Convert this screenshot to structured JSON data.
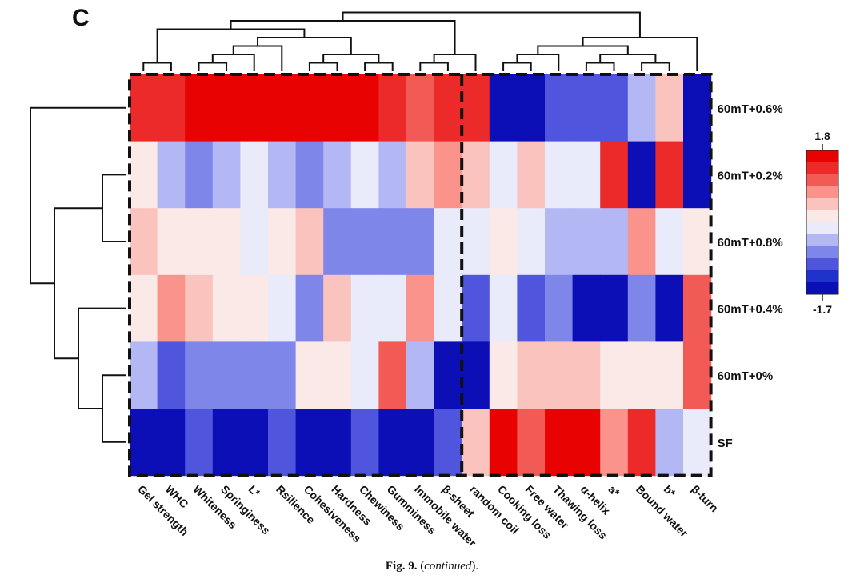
{
  "figure": {
    "panel_label": "C",
    "caption_fig": "Fig. 9.",
    "caption_open": " (",
    "caption_text": "continued",
    "caption_close": ")."
  },
  "chart_data": {
    "type": "heatmap",
    "columns": [
      "Gel strength",
      "WHC",
      "Whiteness",
      "Springiness",
      "L*",
      "Rsilience",
      "Cohesiveness",
      "Hardness",
      "Chewiness",
      "Gumminess",
      "Immobile water",
      "β-sheet",
      "random coil",
      "Cooking loss",
      "Free water",
      "Thawing loss",
      "α-helix",
      "a*",
      "Bound water",
      "b*",
      "β-turn"
    ],
    "rows": [
      "60mT+0.6%",
      "60mT+0.2%",
      "60mT+0.8%",
      "60mT+0.4%",
      "60mT+0%",
      "SF"
    ],
    "values": [
      [
        1.4,
        1.4,
        1.8,
        1.8,
        1.8,
        1.8,
        1.8,
        1.8,
        1.8,
        1.4,
        1.0,
        1.4,
        1.5,
        -1.7,
        -1.7,
        -1.1,
        -1.1,
        -1.1,
        -0.4,
        0.4,
        -1.5
      ],
      [
        0.1,
        -0.5,
        -0.8,
        -0.4,
        -0.1,
        -0.4,
        -0.8,
        -0.4,
        -0.1,
        -0.4,
        0.4,
        0.7,
        0.4,
        -0.1,
        0.4,
        -0.1,
        -0.1,
        1.5,
        -1.5,
        1.5,
        -1.5
      ],
      [
        0.4,
        0.1,
        0.1,
        0.1,
        -0.1,
        0.1,
        0.4,
        -0.8,
        -0.8,
        -0.8,
        -0.8,
        -0.1,
        -0.1,
        0.1,
        -0.1,
        -0.4,
        -0.4,
        -0.4,
        0.7,
        -0.1,
        0.1
      ],
      [
        0.1,
        0.7,
        0.4,
        0.1,
        0.1,
        -0.1,
        -0.8,
        0.4,
        -0.1,
        -0.1,
        0.7,
        -0.1,
        -1.1,
        -0.1,
        -1.1,
        -0.8,
        -1.5,
        -1.5,
        -0.8,
        -1.7,
        1.1
      ],
      [
        -0.4,
        -1.1,
        -0.8,
        -0.8,
        -0.8,
        -0.8,
        0.1,
        0.1,
        -0.1,
        1.1,
        -0.4,
        -1.5,
        -1.5,
        0.1,
        0.4,
        0.4,
        0.4,
        0.1,
        0.1,
        0.1,
        1.1
      ],
      [
        -1.7,
        -1.5,
        -1.1,
        -1.5,
        -1.5,
        -1.1,
        -1.5,
        -1.5,
        -1.1,
        -1.5,
        -1.7,
        -1.1,
        0.4,
        1.8,
        1.1,
        1.8,
        1.8,
        0.7,
        1.5,
        -0.4,
        -0.1
      ]
    ],
    "vmin": -1.7,
    "vmax": 1.8,
    "colorbar_max_label": "1.8",
    "colorbar_min_label": "-1.7",
    "colormap": [
      "#0c0fb5",
      "#1f33cc",
      "#4f55dd",
      "#7f86ea",
      "#b3b8f4",
      "#e9ebfa",
      "#fbe9e8",
      "#fbc3bd",
      "#f9938b",
      "#f25a55",
      "#ec2a2a",
      "#e80202"
    ],
    "column_split_after": 12,
    "legend_position": "right",
    "row_dendrogram_side": "left",
    "column_dendrogram_side": "top",
    "dashed_cluster_borders": true
  }
}
